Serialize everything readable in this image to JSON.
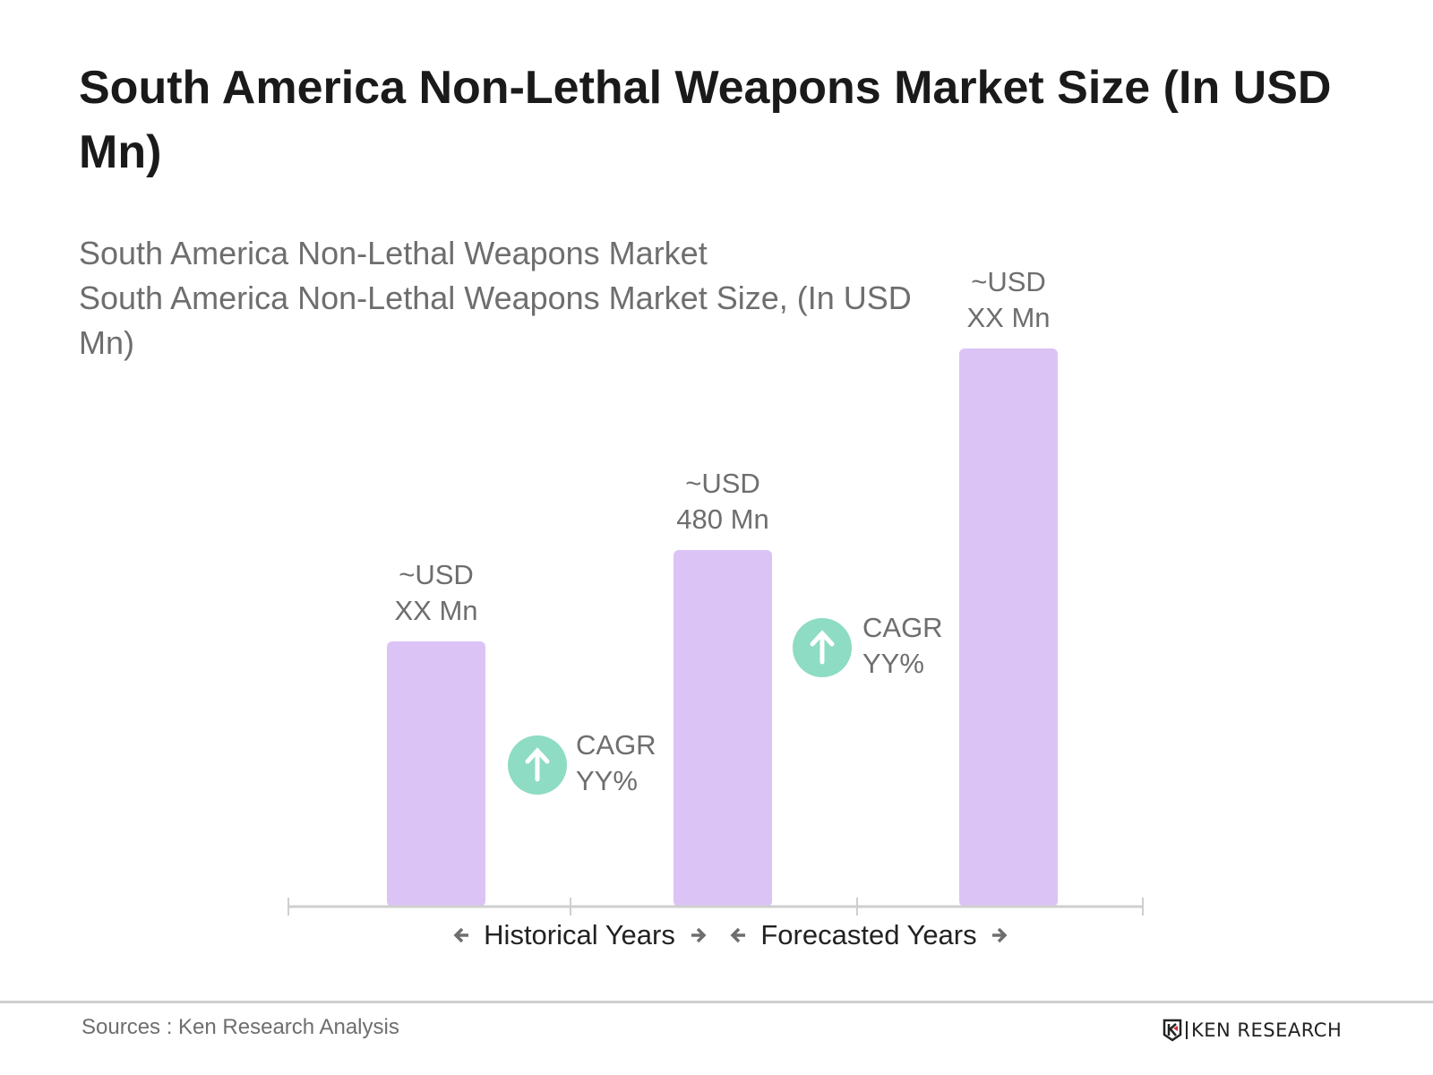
{
  "title": "South America Non-Lethal Weapons Market Size (In USD Mn)",
  "subtitle": {
    "line1": "South America Non-Lethal Weapons Market",
    "line2": "South America Non-Lethal Weapons Market Size, (In USD Mn)"
  },
  "chart_data": {
    "type": "bar",
    "categories": [
      "",
      "",
      ""
    ],
    "values": [
      null,
      480,
      null
    ],
    "relative_heights_note_free": true,
    "data_labels": [
      [
        "~USD",
        "XX Mn"
      ],
      [
        "~USD",
        "480 Mn"
      ],
      [
        "~USD",
        "XX Mn"
      ]
    ],
    "bar_color": "#dcc3f6",
    "annotations": [
      {
        "icon": "arrow-up-circle-icon",
        "line1": "CAGR",
        "line2": "YY%",
        "between": [
          0,
          1
        ]
      },
      {
        "icon": "arrow-up-circle-icon",
        "line1": "CAGR",
        "line2": "YY%",
        "between": [
          1,
          2
        ]
      }
    ],
    "cagr_color": "#8ddcc3",
    "periods": [
      {
        "label": "Historical Years"
      },
      {
        "label": "Forecasted Years"
      }
    ],
    "grid": false,
    "legend": "none"
  },
  "footer": {
    "source": "Sources : Ken Research Analysis",
    "logo": "KEN RESEARCH"
  }
}
